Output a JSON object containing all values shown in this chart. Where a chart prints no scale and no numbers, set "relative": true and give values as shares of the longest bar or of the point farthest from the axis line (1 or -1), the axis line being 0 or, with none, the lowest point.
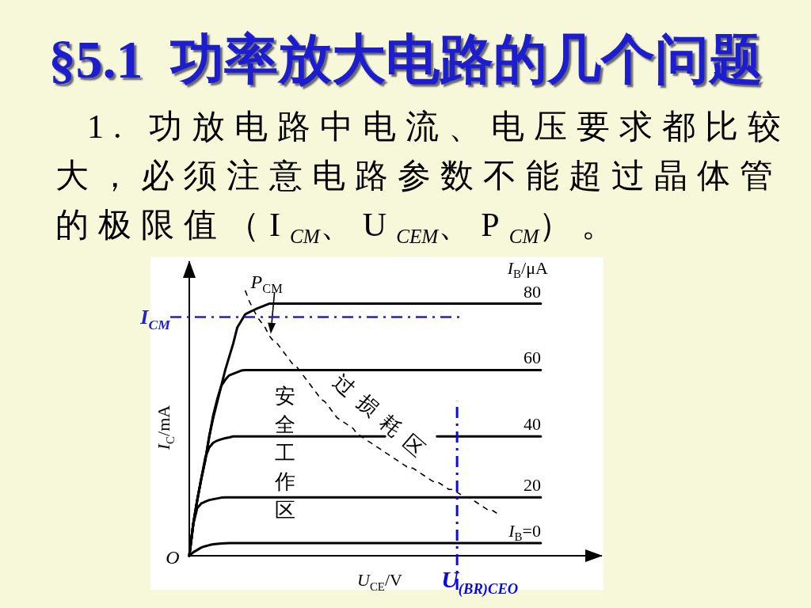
{
  "chart_data": {
    "type": "line",
    "title": "§5.1  功率放大电路的几个问题",
    "subtitle": "1. 功放电路中电流、电压要求都比较大，必须注意电路参数不能超过晶体管的极限值（I$_{CM}$、U$_{CEM}$、P$_{CM}$）。",
    "xlabel": "U$_{CE}$/V",
    "ylabel": "I$_{C}$/mA",
    "legend_title": "I$_{B}$/μA",
    "relative": true,
    "categories": [
      null,
      null,
      null,
      null,
      null,
      null,
      null,
      null,
      null,
      null,
      null,
      null,
      null,
      null,
      null,
      null,
      null,
      null,
      null,
      null,
      null,
      null,
      null,
      null,
      null,
      null,
      null,
      null,
      null,
      null,
      null,
      null,
      null,
      null,
      null,
      null,
      null,
      null,
      null,
      null,
      null,
      null,
      null,
      null,
      null,
      null,
      null,
      null,
      null,
      null,
      null,
      null,
      null,
      null,
      null,
      null,
      null,
      null,
      null,
      null,
      null,
      null,
      null,
      null,
      null,
      null,
      null,
      null,
      null,
      null,
      null,
      null,
      null,
      null,
      null,
      null,
      null,
      null,
      null,
      null,
      null,
      null,
      null,
      null,
      null,
      null,
      null,
      null,
      null
    ],
    "series": [
      {
        "name": "80",
        "color": "#000000",
        "values": [
          0,
          0.12,
          0.21,
          0.29,
          0.36,
          0.45,
          0.52,
          0.58,
          0.64,
          0.7,
          0.75,
          0.8,
          0.86,
          0.885,
          0.91,
          0.918,
          0.925,
          0.932,
          0.938,
          0.944,
          0.95,
          0.95,
          0.95,
          0.95,
          0.95,
          0.95,
          0.95,
          0.95,
          0.95,
          0.95,
          0.95,
          0.95,
          0.95,
          0.95,
          0.95,
          0.95,
          0.95,
          0.95,
          0.95,
          0.95,
          0.95,
          0.95,
          0.95,
          0.95,
          0.95,
          0.95,
          0.95,
          0.95,
          0.95,
          0.95,
          0.95,
          0.95,
          0.95,
          0.95,
          0.95,
          0.95,
          0.95,
          0.95,
          0.95,
          0.95,
          0.95,
          0.95,
          0.95,
          0.95,
          0.95,
          0.95,
          0.95,
          0.95,
          0.95,
          0.95,
          0.95,
          0.95,
          0.95,
          0.95,
          0.95,
          0.95,
          0.95,
          0.95,
          0.95,
          0.95,
          0.95,
          0.95,
          0.95,
          0.95,
          0.95,
          0.95,
          0.95,
          0.95,
          0.95
        ]
      },
      {
        "name": "60",
        "color": "#000000",
        "values": [
          0,
          0.12,
          0.21,
          0.29,
          0.36,
          0.45,
          0.53,
          0.59,
          0.64,
          0.663,
          0.68,
          0.686,
          0.692,
          0.698,
          0.7,
          0.7,
          0.7,
          0.7,
          0.7,
          0.7,
          0.7,
          0.7,
          0.7,
          0.7,
          0.7,
          0.7,
          0.7,
          0.7,
          0.7,
          0.7,
          0.7,
          0.7,
          0.7,
          0.7,
          0.7,
          0.7,
          0.7,
          0.7,
          0.7,
          0.7,
          0.7,
          0.7,
          0.7,
          0.7,
          0.7,
          0.7,
          0.7,
          0.7,
          0.7,
          0.7,
          0.7,
          0.7,
          0.7,
          0.7,
          0.7,
          0.7,
          0.7,
          0.7,
          0.7,
          0.7,
          0.7,
          0.7,
          0.7,
          0.7,
          0.7,
          0.7,
          0.7,
          0.7,
          0.7,
          0.7,
          0.7,
          0.7,
          0.7,
          0.7,
          0.7,
          0.7,
          0.7,
          0.7,
          0.7,
          0.7,
          0.7,
          0.7,
          0.7,
          0.7,
          0.7,
          0.7,
          0.7,
          0.7,
          0.7
        ]
      },
      {
        "name": "40",
        "color": "#000000",
        "values": [
          0,
          0.12,
          0.21,
          0.29,
          0.37,
          0.408,
          0.426,
          0.434,
          0.439,
          0.443,
          0.446,
          0.45,
          0.45,
          0.45,
          0.45,
          0.45,
          0.45,
          0.45,
          0.45,
          0.45,
          0.45,
          0.45,
          0.45,
          0.45,
          0.45,
          0.45,
          0.45,
          0.45,
          0.45,
          0.45,
          0.45,
          0.45,
          0.45,
          0.45,
          0.45,
          0.45,
          0.45,
          0.45,
          0.45,
          0.45,
          0.45,
          0.45,
          0.45,
          0.45,
          0.45,
          0.45,
          0.45,
          0.45,
          0.45,
          0.45,
          null,
          null,
          null,
          null,
          null,
          null,
          null,
          null,
          null,
          null,
          null,
          null,
          0.45,
          0.45,
          0.45,
          0.45,
          0.45,
          0.45,
          0.45,
          0.45,
          0.45,
          0.45,
          0.45,
          0.45,
          0.45,
          0.45,
          0.45,
          0.45,
          0.45,
          0.45,
          0.45,
          0.45,
          0.45,
          0.45,
          0.45,
          0.45,
          0.45,
          0.45,
          0.45
        ]
      },
      {
        "name": "20",
        "color": "#000000",
        "values": [
          0,
          0.12,
          0.18,
          0.197,
          0.204,
          0.21,
          0.213,
          0.216,
          0.219,
          0.22,
          0.22,
          0.22,
          0.22,
          0.22,
          0.22,
          0.22,
          0.22,
          0.22,
          0.22,
          0.22,
          0.22,
          0.22,
          0.22,
          0.22,
          0.22,
          0.22,
          0.22,
          0.22,
          0.22,
          0.22,
          0.22,
          0.22,
          0.22,
          0.22,
          0.22,
          0.22,
          0.22,
          0.22,
          0.22,
          0.22,
          0.22,
          0.22,
          0.22,
          0.22,
          0.22,
          0.22,
          0.22,
          0.22,
          0.22,
          0.22,
          0.22,
          0.22,
          0.22,
          0.22,
          0.22,
          0.22,
          0.22,
          0.22,
          0.22,
          0.22,
          0.22,
          0.22,
          0.22,
          0.22,
          0.22,
          0.22,
          0.22,
          0.22,
          0.22,
          0.22,
          0.22,
          0.22,
          0.22,
          0.22,
          0.22,
          0.22,
          0.22,
          0.22,
          0.22,
          0.22,
          0.22,
          0.22,
          0.22,
          0.22,
          0.22,
          0.22,
          0.22,
          0.22,
          0.22
        ]
      },
      {
        "name": "I$_{B}$=0",
        "color": "#000000",
        "values": [
          0,
          0.013,
          0.022,
          0.031,
          0.036,
          0.04,
          0.043,
          0.045,
          0.046,
          0.047,
          0.048,
          0.048,
          0.048,
          0.048,
          0.048,
          0.048,
          0.048,
          0.048,
          0.048,
          0.048,
          0.048,
          0.048,
          0.048,
          0.048,
          0.048,
          0.048,
          0.048,
          0.048,
          0.048,
          0.048,
          0.048,
          0.048,
          0.048,
          0.048,
          0.048,
          0.048,
          0.048,
          0.048,
          0.048,
          0.048,
          0.048,
          0.048,
          0.048,
          0.048,
          0.048,
          0.048,
          0.048,
          0.048,
          0.048,
          0.048,
          0.048,
          0.048,
          0.048,
          0.048,
          0.048,
          0.048,
          0.048,
          0.048,
          0.048,
          0.048,
          0.048,
          0.048,
          0.048,
          0.048,
          0.048,
          0.048,
          0.048,
          0.048,
          0.048,
          0.048,
          0.048,
          0.048,
          0.048,
          0.048,
          0.048,
          0.048,
          0.048,
          0.048,
          0.048,
          0.048,
          0.048,
          0.048,
          0.048,
          0.048,
          0.048,
          0.048,
          0.048,
          0.048,
          0.048
        ]
      },
      {
        "name": "P$_{CM}$",
        "color": "#000000",
        "line_style": "dashed",
        "values": [
          null,
          null,
          null,
          null,
          null,
          null,
          null,
          null,
          null,
          null,
          null,
          null,
          null,
          null,
          1,
          0.96,
          0.93,
          0.9,
          0.88,
          0.86,
          0.83,
          0.81,
          0.8,
          0.78,
          0.76,
          0.74,
          0.72,
          0.71,
          0.69,
          0.67,
          0.65,
          0.63,
          0.61,
          0.59,
          0.58,
          0.56,
          0.54,
          0.52,
          0.51,
          0.5,
          0.49,
          0.48,
          0.46,
          0.45,
          0.44,
          0.43,
          0.42,
          0.41,
          0.4,
          0.39,
          0.38,
          0.37,
          0.36,
          0.35,
          0.34,
          0.33,
          0.33,
          0.32,
          0.31,
          0.3,
          0.29,
          0.28,
          0.28,
          0.27,
          0.26,
          0.25,
          0.25,
          0.24,
          0.23,
          0.22,
          0.22,
          0.21,
          0.2,
          0.19,
          0.18,
          0.17,
          0.17,
          0.16,
          null,
          null,
          null,
          null,
          null,
          null,
          null,
          null,
          null,
          null,
          null
        ]
      }
    ],
    "ref_lines": [
      {
        "axis": "y",
        "value": 0.9,
        "label": "I$_{CM}$",
        "color": "#1f1fd0",
        "line_style": "dashdot"
      }
    ],
    "annotations": [
      "O",
      "安全工作区",
      "过损耗区",
      "U$_{(BR)CEO}$"
    ]
  }
}
